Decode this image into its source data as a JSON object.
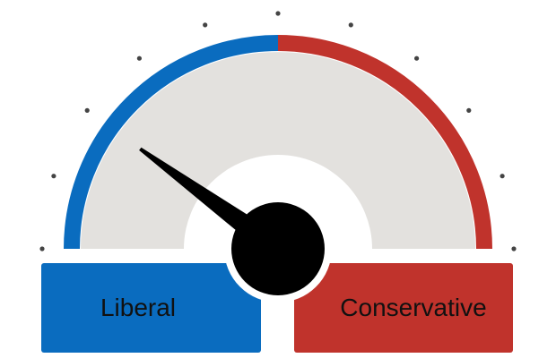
{
  "gauge": {
    "left_label": "Liberal",
    "right_label": "Conservative",
    "needle_fraction": 0.2,
    "tick_count": 11,
    "colors": {
      "liberal": "#0a6cbf",
      "conservative": "#c0332c",
      "face": "#e3e1de",
      "needle": "#000000",
      "tick": "#444444"
    }
  }
}
